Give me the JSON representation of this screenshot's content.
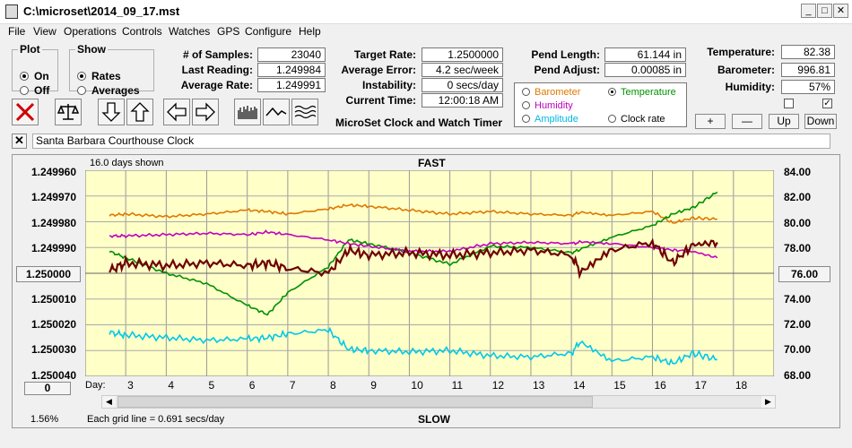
{
  "window": {
    "title": "C:\\microset\\2014_09_17.mst"
  },
  "menu": [
    "File",
    "View",
    "Operations",
    "Controls",
    "Watches",
    "GPS",
    "Configure",
    "Help"
  ],
  "plot": {
    "legend": "Plot",
    "on": "On",
    "off": "Off",
    "selected": "on"
  },
  "show": {
    "legend": "Show",
    "rates": "Rates",
    "averages": "Averages",
    "selected": "rates"
  },
  "stats": {
    "samples_label": "# of Samples:",
    "samples": "23040",
    "last_label": "Last Reading:",
    "last": "1.249984",
    "avg_label": "Average Rate:",
    "avg": "1.249991",
    "target_label": "Target Rate:",
    "target": "1.2500000",
    "error_label": "Average Error:",
    "error": "4.2 sec/week",
    "instab_label": "Instability:",
    "instab": "0 secs/day",
    "time_label": "Current Time:",
    "time": "12:00:18 AM",
    "pendlen_label": "Pend Length:",
    "pendlen": "61.144 in",
    "pendadj_label": "Pend Adjust:",
    "pendadj": "0.00085 in",
    "temp_label": "Temperature:",
    "temp": "82.38",
    "baro_label": "Barometer:",
    "baro": "996.81",
    "hum_label": "Humidity:",
    "hum": "57%"
  },
  "app_caption": "MicroSet Clock and Watch Timer",
  "aux_select": {
    "barometer": "Barometer",
    "temperature": "Temperature",
    "humidity": "Humidity",
    "amplitude": "Amplitude",
    "clock_rate": "Clock rate",
    "selected": "temperature",
    "colors": {
      "barometer": "#e07800",
      "temperature": "#009000",
      "humidity": "#c000c0",
      "amplitude": "#00c8e8",
      "clock_rate": "#000000"
    }
  },
  "aux_buttons": {
    "plus": "+",
    "minus": "—",
    "up": "Up",
    "down": "Down"
  },
  "checkboxes": {
    "left": false,
    "right": true
  },
  "clock_name": "Santa Barbara Courthouse Clock",
  "chart": {
    "days_shown": "16.0 days shown",
    "top_label": "FAST",
    "bottom_label": "SLOW",
    "grid_note": "Each grid line = 0.691 secs/day",
    "percent": "1.56%",
    "day_label": "Day:",
    "center_left": "1.250000",
    "center_right": "76.00",
    "zero_btn": "0"
  },
  "chart_data": {
    "type": "line",
    "x": [
      2.6,
      3,
      4,
      5,
      6,
      6.5,
      7,
      8,
      8.5,
      9,
      10,
      11,
      12,
      13,
      14,
      14.2,
      15,
      16,
      16.5,
      17,
      17.6
    ],
    "xticks": [
      "3",
      "4",
      "5",
      "6",
      "7",
      "8",
      "9",
      "10",
      "11",
      "12",
      "13",
      "14",
      "15",
      "16",
      "17",
      "18"
    ],
    "yleft": {
      "ticks": [
        "1.249960",
        "1.249970",
        "1.249980",
        "1.249990",
        "1.250000",
        "1.250010",
        "1.250020",
        "1.250030",
        "1.250040"
      ],
      "range": [
        1.24996,
        1.25004
      ],
      "inverted": true
    },
    "yright": {
      "ticks": [
        "84.00",
        "82.00",
        "80.00",
        "78.00",
        "76.00",
        "74.00",
        "72.00",
        "70.00",
        "68.00"
      ],
      "range": [
        68,
        84
      ]
    },
    "series": [
      {
        "key": "barometer",
        "color": "#e07800",
        "axis": "right",
        "values": [
          80.5,
          80.6,
          80.4,
          80.6,
          80.9,
          80.8,
          80.6,
          81.0,
          81.3,
          81.2,
          80.9,
          80.6,
          80.8,
          80.6,
          80.5,
          80.7,
          80.5,
          80.8,
          79.9,
          80.3,
          80.2
        ]
      },
      {
        "key": "temperature",
        "color": "#009000",
        "axis": "right",
        "values": [
          77.7,
          77.2,
          76.0,
          75.2,
          73.5,
          72.8,
          74.5,
          76.5,
          78.6,
          78.3,
          77.6,
          76.7,
          78.1,
          78.0,
          77.6,
          77.8,
          78.8,
          79.7,
          80.6,
          81.1,
          82.3
        ]
      },
      {
        "key": "humidity",
        "color": "#c000c0",
        "axis": "right",
        "values": [
          78.9,
          78.9,
          79.0,
          79.1,
          79.0,
          79.2,
          79.0,
          78.6,
          78.3,
          78.1,
          77.7,
          77.7,
          78.3,
          78.4,
          78.3,
          78.4,
          78.3,
          78.0,
          77.8,
          77.7,
          77.2
        ]
      },
      {
        "key": "amplitude",
        "color": "#00c8e8",
        "axis": "right",
        "values": [
          71.4,
          71.2,
          71.0,
          70.8,
          70.9,
          71.0,
          71.3,
          71.6,
          70.1,
          70.0,
          69.9,
          70.0,
          69.6,
          69.5,
          69.8,
          70.6,
          69.2,
          69.5,
          69.0,
          69.8,
          69.3
        ]
      },
      {
        "key": "clock_rate",
        "color": "#6e0000",
        "axis": "left",
        "values": [
          1.249999,
          1.249996,
          1.249997,
          1.249996,
          1.249997,
          1.249996,
          1.249998,
          1.25,
          1.249991,
          1.249993,
          1.249992,
          1.249993,
          1.249992,
          1.249991,
          1.249993,
          1.249999,
          1.249991,
          1.249988,
          1.249996,
          1.249989,
          1.249988
        ]
      }
    ]
  }
}
